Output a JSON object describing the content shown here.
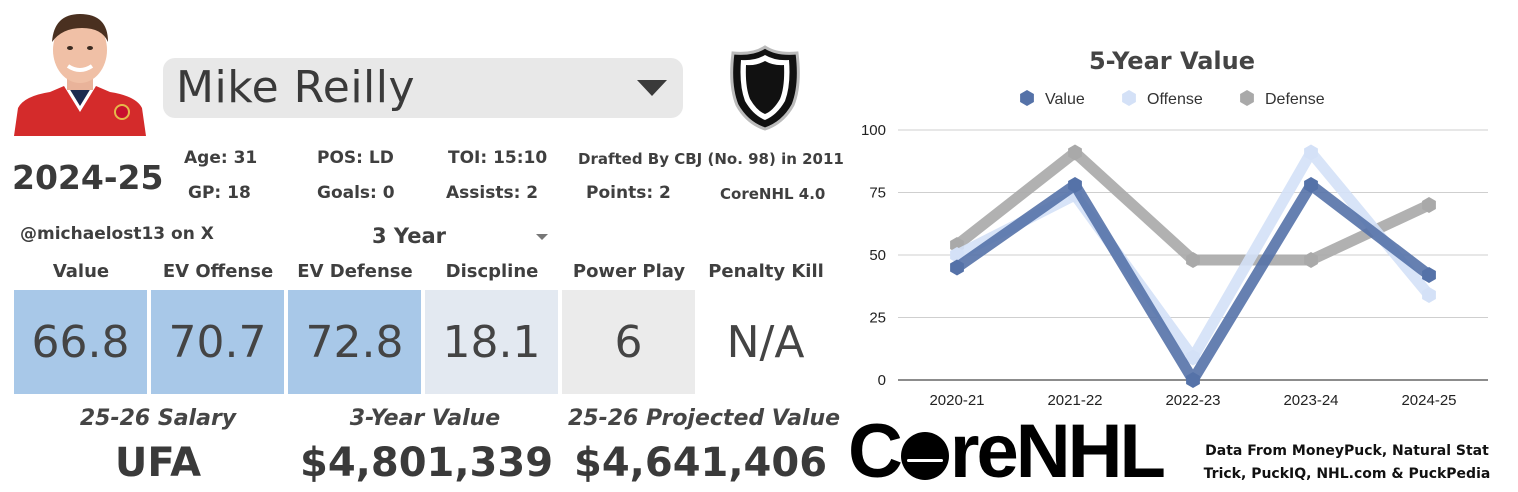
{
  "player": {
    "name": "Mike Reilly",
    "season": "2024-25",
    "handle": "@michaelost13 on X"
  },
  "stats": {
    "age": "Age: 31",
    "pos": "POS: LD",
    "toi": "TOI: 15:10",
    "drafted": "Drafted By CBJ (No. 98) in 2011",
    "gp": "GP: 18",
    "goals": "Goals: 0",
    "assists": "Assists: 2",
    "points": "Points: 2",
    "version": "CoreNHL 4.0"
  },
  "range_select": {
    "value": "3 Year"
  },
  "metrics": [
    {
      "label": "Value",
      "value": "66.8",
      "color": "#a8c8e8"
    },
    {
      "label": "EV Offense",
      "value": "70.7",
      "color": "#a8c8e8"
    },
    {
      "label": "EV Defense",
      "value": "72.8",
      "color": "#a8c8e8"
    },
    {
      "label": "Discpline",
      "value": "18.1",
      "color": "#e3e9f1"
    },
    {
      "label": "Power Play",
      "value": "6",
      "color": "#ebebeb"
    },
    {
      "label": "Penalty Kill",
      "value": "N/A",
      "color": "#ffffff"
    }
  ],
  "bottom": {
    "salary_label": "25-26 Salary",
    "salary_value": "UFA",
    "three_year_label": "3-Year Value",
    "three_year_value": "$4,801,339",
    "projected_label": "25-26 Projected Value",
    "projected_value": "$4,641,406"
  },
  "branding": {
    "logo_pre": "C",
    "logo_post": "reNHL",
    "credits_line1": "Data From MoneyPuck, Natural Stat",
    "credits_line2": "Trick, PuckIQ, NHL.com & PuckPedia"
  },
  "chart_data": {
    "type": "line",
    "title": "5-Year Value",
    "categories": [
      "2020-21",
      "2021-22",
      "2022-23",
      "2023-24",
      "2024-25"
    ],
    "ylim": [
      0,
      100
    ],
    "yticks": [
      0,
      25,
      50,
      75,
      100
    ],
    "grid": true,
    "legend": "top",
    "series": [
      {
        "name": "Defense",
        "values": [
          54,
          91,
          48,
          48,
          70
        ],
        "color": "#a9a9a9"
      },
      {
        "name": "Offense",
        "values": [
          50,
          74,
          9,
          91,
          34
        ],
        "color": "#d4e1f7"
      },
      {
        "name": "Value",
        "values": [
          45,
          78,
          0,
          78,
          42
        ],
        "color": "#5572a8"
      }
    ],
    "legend_order": [
      "Value",
      "Offense",
      "Defense"
    ]
  }
}
